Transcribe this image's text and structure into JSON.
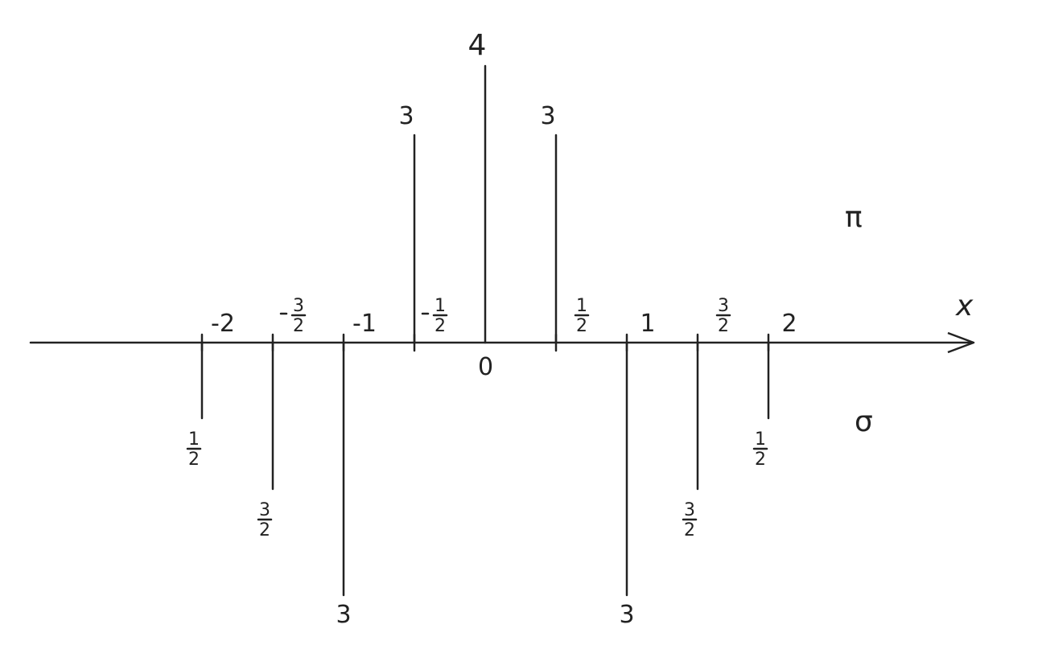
{
  "axis": {
    "label": "x"
  },
  "regions": {
    "upper": "π",
    "lower": "σ"
  },
  "origin_label": "0",
  "ticks": [
    {
      "x": -2,
      "label": "-2"
    },
    {
      "x": -1.5,
      "num": "3",
      "den": "2",
      "neg": true
    },
    {
      "x": -1,
      "label": "-1"
    },
    {
      "x": -0.5,
      "num": "1",
      "den": "2",
      "neg": true
    },
    {
      "x": 0.5,
      "num": "1",
      "den": "2"
    },
    {
      "x": 1,
      "label": "1"
    },
    {
      "x": 1.5,
      "num": "3",
      "den": "2"
    },
    {
      "x": 2,
      "label": "2"
    }
  ],
  "pi_lines": [
    {
      "x": -0.5,
      "value": 3,
      "label": "3"
    },
    {
      "x": 0,
      "value": 4,
      "label": "4"
    },
    {
      "x": 0.5,
      "value": 3,
      "label": "3"
    }
  ],
  "sigma_lines": [
    {
      "x": -2,
      "value": 0.5,
      "num": "1",
      "den": "2"
    },
    {
      "x": -1.5,
      "value": 1.5,
      "num": "3",
      "den": "2"
    },
    {
      "x": -1,
      "value": 3,
      "label": "3"
    },
    {
      "x": 1,
      "value": 3,
      "label": "3"
    },
    {
      "x": 1.5,
      "value": 1.5,
      "num": "3",
      "den": "2"
    },
    {
      "x": 2,
      "value": 0.5,
      "num": "1",
      "den": "2"
    }
  ]
}
